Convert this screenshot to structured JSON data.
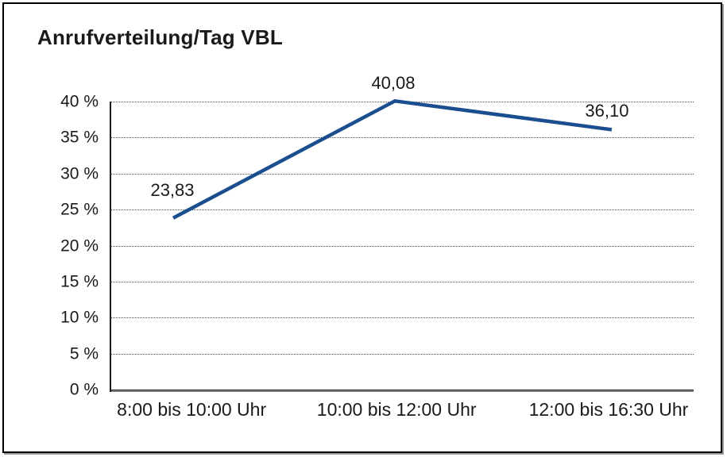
{
  "chart_data": {
    "type": "line",
    "title": "Anrufverteilung/Tag VBL",
    "categories": [
      "8:00 bis 10:00 Uhr",
      "10:00 bis 12:00 Uhr",
      "12:00 bis 16:30 Uhr"
    ],
    "values": [
      23.83,
      40.08,
      36.1
    ],
    "value_labels": [
      "23,83",
      "40,08",
      "36,10"
    ],
    "xlabel": "",
    "ylabel": "",
    "ylim": [
      0,
      40
    ],
    "ytick_step": 5,
    "ytick_labels_top_to_bottom": [
      "40 %",
      "35 %",
      "30 %",
      "25 %",
      "20 %",
      "15 %",
      "10 %",
      "5 %",
      "0 %"
    ],
    "grid": "horizontal-dotted",
    "legend": "none",
    "line_color": "#1a4e8f",
    "text_color": "#1a1a1a",
    "frame_color": "#000000"
  }
}
